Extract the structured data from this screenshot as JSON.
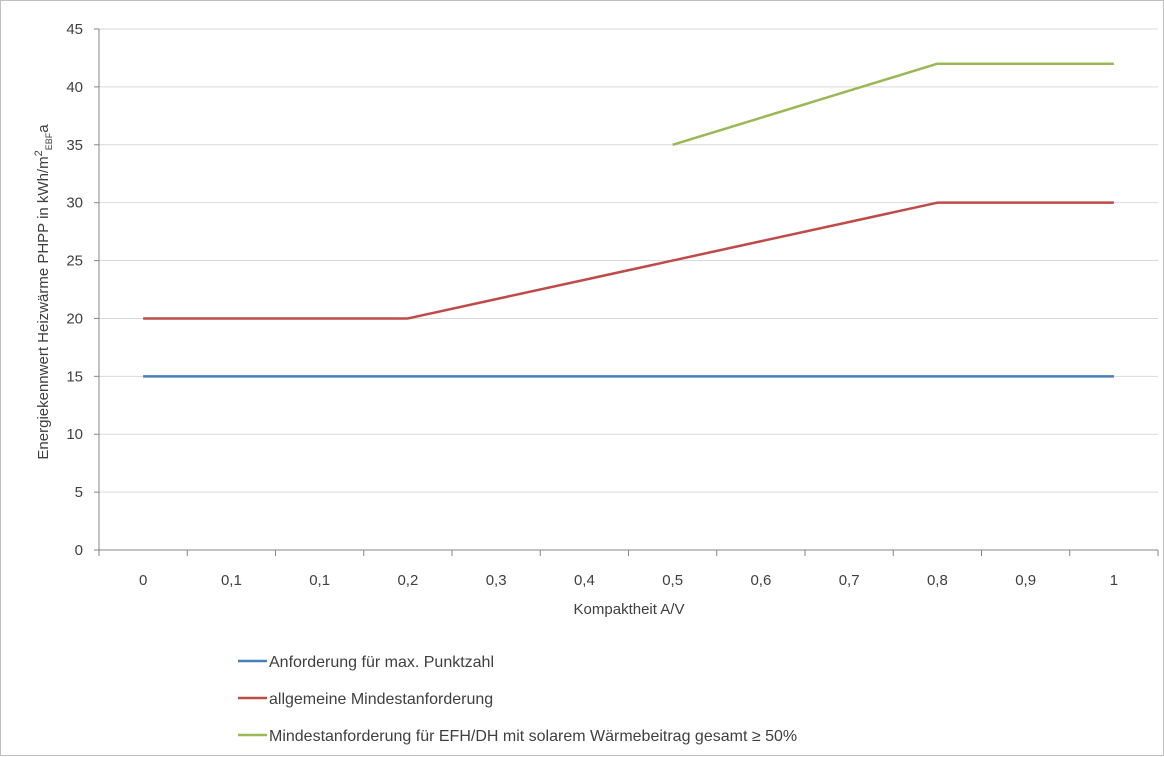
{
  "chart_data": {
    "type": "line",
    "title": "",
    "xlabel": "Kompaktheit A/V",
    "ylabel_main": "Energiekennwert Heizwärme PHPP in kWh/m",
    "ylabel_sup": "2",
    "ylabel_sub": "EBF",
    "ylabel_tail": "a",
    "categories": [
      "0",
      "0,1",
      "0,1",
      "0,2",
      "0,3",
      "0,4",
      "0,5",
      "0,6",
      "0,7",
      "0,8",
      "0,9",
      "1"
    ],
    "ylim": [
      0,
      45
    ],
    "yticks": [
      0,
      5,
      10,
      15,
      20,
      25,
      30,
      35,
      40,
      45
    ],
    "grid": "horizontal",
    "legend_position": "bottom",
    "series": [
      {
        "name": "Anforderung für max. Punktzahl",
        "color": "#4a7ebb",
        "values": [
          15,
          15,
          15,
          15,
          15,
          15,
          15,
          15,
          15,
          15,
          15,
          15
        ]
      },
      {
        "name": "allgemeine Mindestanforderung",
        "color": "#be4b48",
        "values": [
          20,
          20,
          20,
          20,
          21.67,
          23.33,
          25,
          26.67,
          28.33,
          30,
          30,
          30
        ]
      },
      {
        "name": "Mindestanforderung für EFH/DH mit solarem Wärmebeitrag gesamt ≥ 50%",
        "color": "#98b954",
        "values": [
          null,
          null,
          null,
          null,
          null,
          null,
          35,
          37.33,
          39.67,
          42,
          42,
          42
        ]
      }
    ]
  }
}
